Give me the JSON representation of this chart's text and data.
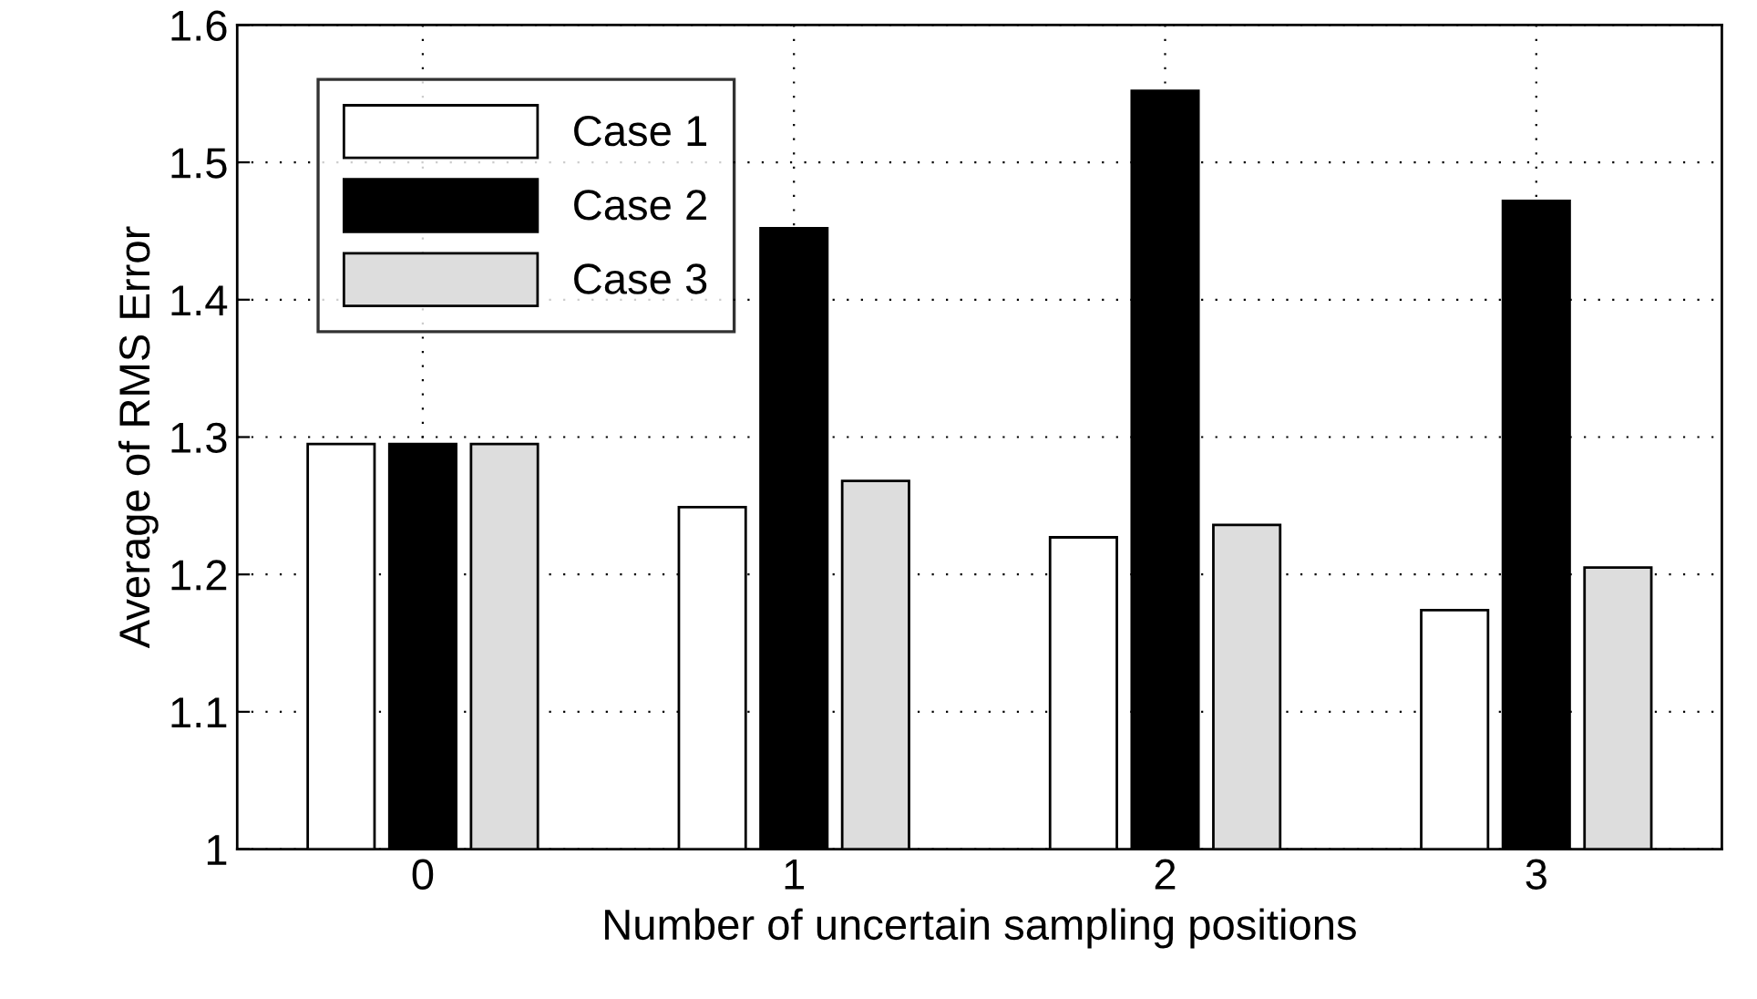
{
  "chart_data": {
    "type": "bar",
    "xlabel": "Number of uncertain sampling positions",
    "ylabel": "Average of RMS Error",
    "categories": [
      "0",
      "1",
      "2",
      "3"
    ],
    "series": [
      {
        "name": "Case 1",
        "color": "#ffffff",
        "values": [
          1.295,
          1.249,
          1.227,
          1.174
        ]
      },
      {
        "name": "Case 2",
        "color": "#000000",
        "values": [
          1.295,
          1.452,
          1.552,
          1.472
        ]
      },
      {
        "name": "Case 3",
        "color": "#dddddd",
        "values": [
          1.295,
          1.268,
          1.236,
          1.205
        ]
      }
    ],
    "ylim": [
      1,
      1.6
    ],
    "yticks": [
      1,
      1.1,
      1.2,
      1.3,
      1.4,
      1.5,
      1.6
    ],
    "grid": true,
    "legend": "top left"
  }
}
